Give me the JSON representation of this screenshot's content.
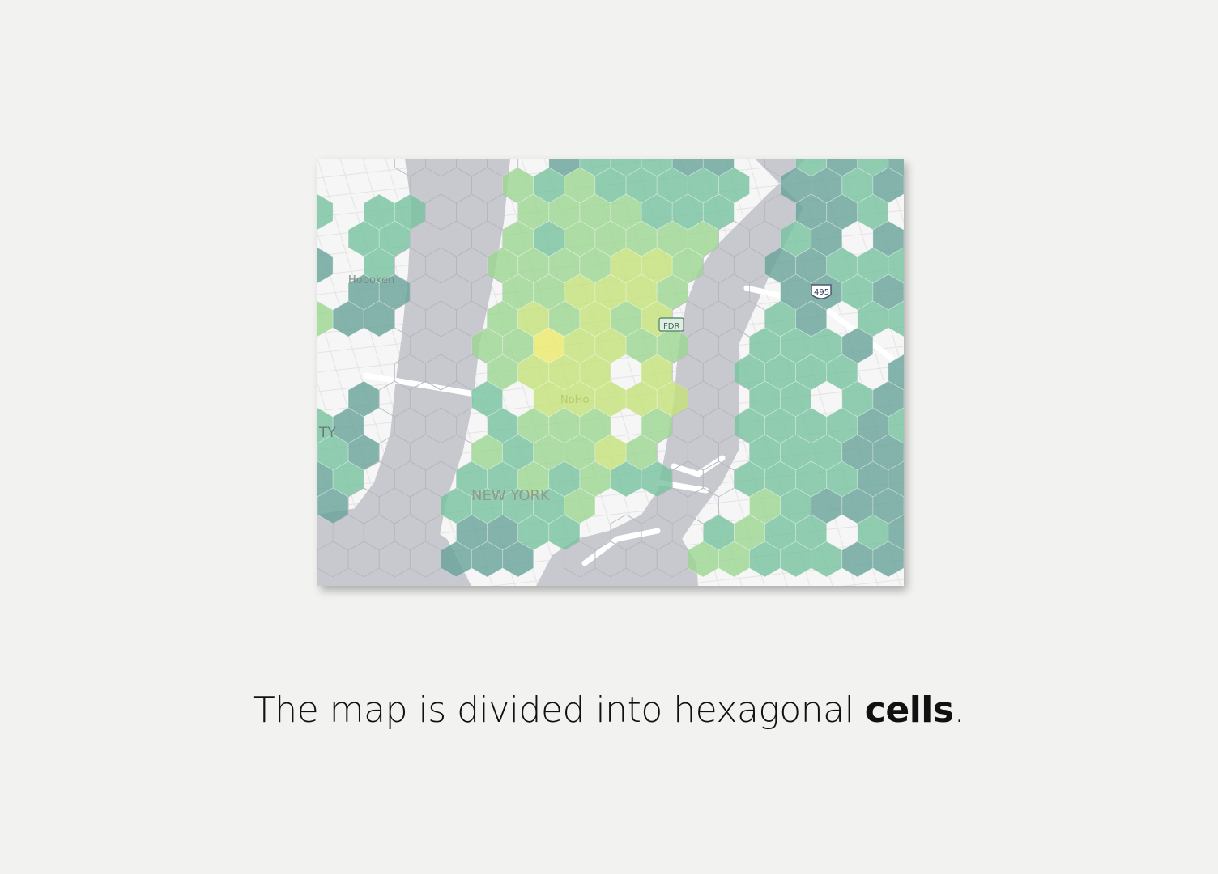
{
  "caption": {
    "prefix": "The map is divided into hexagonal ",
    "emphasis": "cells",
    "suffix": "."
  },
  "map": {
    "labels": {
      "hoboken": "Hoboken",
      "city_fragment": "TY",
      "noho": "NoHo",
      "new_york": "NEW YORK",
      "fdr": "FDR",
      "i495": "495"
    },
    "colors": {
      "background": "#f4f4f4",
      "land": "#f7f7f7",
      "water": "#c7c9ce",
      "road": "#ffffff",
      "minor_road": "#e3e3e3"
    },
    "color_scale": [
      "#6e8fa8",
      "#6aa39b",
      "#79c2a0",
      "#9ed592",
      "#c4e27a",
      "#ece96a"
    ],
    "low_value_color": "#6a3a78"
  }
}
